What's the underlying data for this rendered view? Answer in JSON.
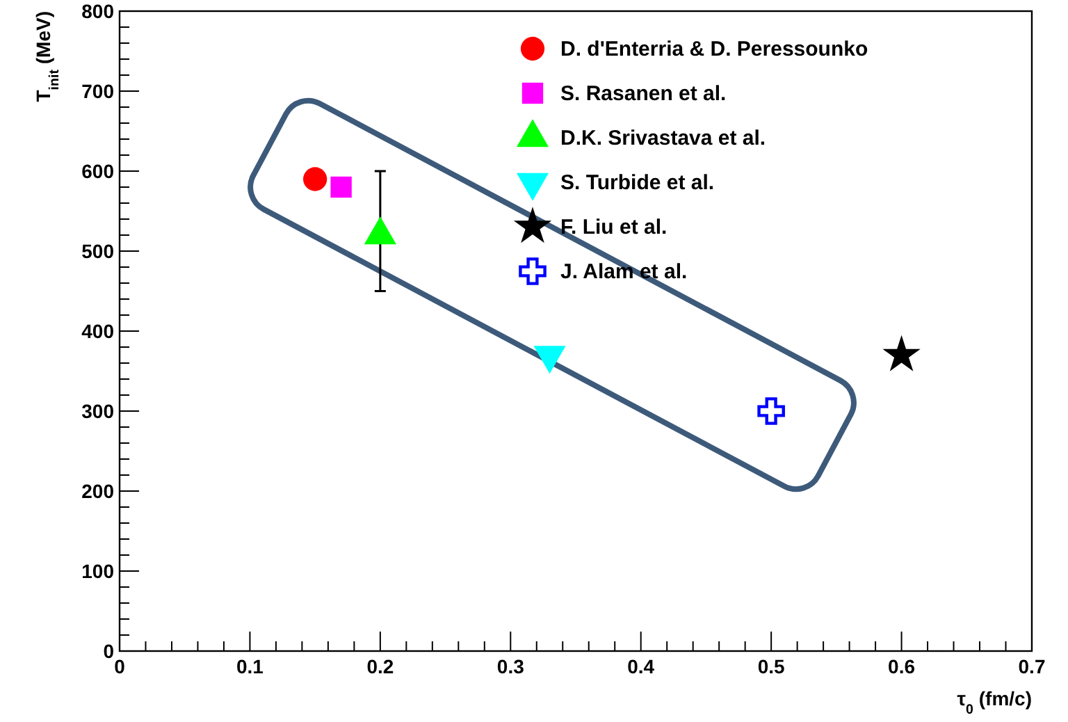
{
  "chart_data": {
    "type": "scatter",
    "xlabel": "τ$_{0}$ (fm/c)",
    "ylabel": "T$_{init}$ (MeV)",
    "xlim": [
      0,
      0.7
    ],
    "ylim": [
      0,
      800
    ],
    "xticks": [
      0,
      0.1,
      0.2,
      0.3,
      0.4,
      0.5,
      0.6,
      0.7
    ],
    "yticks": [
      0,
      100,
      200,
      300,
      400,
      500,
      600,
      700,
      800
    ],
    "grid": false,
    "legend": "top right",
    "series": [
      {
        "name": "D. d'Enterria & D. Peressounko",
        "color": "#ff0000",
        "marker": "circle",
        "x": [
          0.15
        ],
        "values": [
          590
        ]
      },
      {
        "name": "S. Rasanen et al.",
        "color": "#ff00ff",
        "marker": "square",
        "x": [
          0.17
        ],
        "values": [
          580
        ]
      },
      {
        "name": "D.K. Srivastava et al.",
        "color": "#00ff00",
        "marker": "triangle",
        "x": [
          0.2
        ],
        "values": [
          520
        ],
        "errors": [
          [
            450,
            600
          ]
        ]
      },
      {
        "name": "S. Turbide et al.",
        "color": "#00ffff",
        "marker": "triangle-down",
        "x": [
          0.33
        ],
        "values": [
          370
        ]
      },
      {
        "name": "F. Liu et al.",
        "color": "#000000",
        "marker": "star",
        "x": [
          0.6
        ],
        "values": [
          370
        ]
      },
      {
        "name": "J. Alam et al.",
        "color": "#0000ff",
        "marker": "cross",
        "x": [
          0.5
        ],
        "values": [
          300
        ]
      }
    ]
  }
}
